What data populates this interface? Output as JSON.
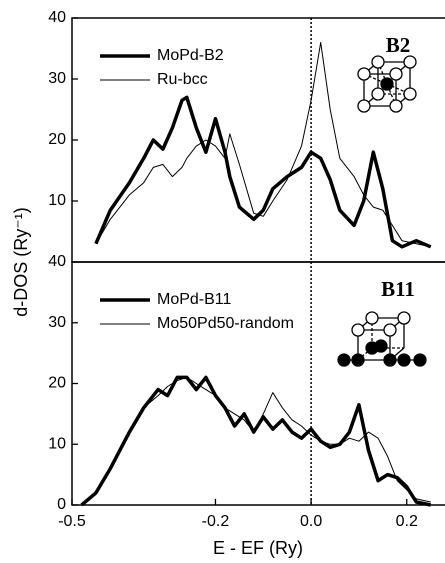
{
  "chart_data": [
    {
      "type": "line",
      "annotation": "B2",
      "ylabel": "d-DOS (Ry⁻¹)",
      "grid": false,
      "vline": 0,
      "x": [
        -0.45,
        -0.42,
        -0.38,
        -0.35,
        -0.33,
        -0.31,
        -0.29,
        -0.27,
        -0.26,
        -0.24,
        -0.22,
        -0.2,
        -0.18,
        -0.17,
        -0.15,
        -0.12,
        -0.1,
        -0.08,
        -0.05,
        -0.02,
        0,
        0.02,
        0.04,
        0.06,
        0.09,
        0.11,
        0.13,
        0.15,
        0.17,
        0.19,
        0.22,
        0.25
      ],
      "series": [
        {
          "name": "MoPd-B2",
          "color": "#000000",
          "width": 3.5,
          "values": [
            3,
            8.5,
            13,
            17,
            20,
            18.5,
            22,
            26.5,
            27,
            22,
            18,
            23.5,
            18,
            14,
            9,
            7,
            8.5,
            12,
            14,
            15.5,
            18,
            17,
            13.5,
            8.5,
            6,
            10,
            18,
            12,
            3.5,
            2.5,
            3.5,
            2.5
          ]
        },
        {
          "name": "Ru-bcc",
          "color": "#000000",
          "width": 1,
          "values": [
            3,
            7,
            11,
            13,
            15.5,
            16,
            14,
            15.5,
            17,
            19,
            20,
            19,
            17,
            21,
            16,
            8,
            7.5,
            10,
            13.5,
            19,
            26.5,
            36,
            25,
            17,
            14,
            11,
            9,
            8.5,
            6,
            3.5,
            3,
            2.5
          ]
        }
      ],
      "xlim": [
        -0.5,
        0.28
      ],
      "ylim": [
        0,
        40
      ],
      "yticks": [
        10,
        20,
        30,
        40
      ]
    },
    {
      "type": "line",
      "annotation": "B11",
      "xlabel": "E - EF (Ry)",
      "grid": false,
      "vline": 0,
      "x": [
        -0.48,
        -0.45,
        -0.42,
        -0.38,
        -0.35,
        -0.32,
        -0.3,
        -0.28,
        -0.26,
        -0.24,
        -0.22,
        -0.2,
        -0.18,
        -0.16,
        -0.14,
        -0.12,
        -0.1,
        -0.08,
        -0.06,
        -0.04,
        -0.02,
        0,
        0.02,
        0.04,
        0.06,
        0.08,
        0.1,
        0.12,
        0.14,
        0.16,
        0.18,
        0.2,
        0.22,
        0.25
      ],
      "series": [
        {
          "name": "MoPd-B11",
          "color": "#000000",
          "width": 3.5,
          "values": [
            0,
            2,
            6,
            12,
            16,
            19,
            18,
            21,
            21,
            19,
            21,
            18,
            16,
            13,
            15,
            12,
            14.5,
            12.5,
            14,
            12,
            11,
            12.5,
            10.5,
            9.5,
            10,
            12,
            16.5,
            9,
            4,
            5,
            4.5,
            3,
            0.5,
            0
          ]
        },
        {
          "name": "Mo50Pd50-random",
          "color": "#000000",
          "width": 1,
          "values": [
            0,
            2,
            6,
            12,
            16,
            18,
            19.5,
            20.5,
            21,
            20,
            19,
            18,
            16,
            15,
            14,
            12,
            15,
            18.5,
            16,
            14,
            13,
            11.5,
            10.5,
            10,
            10,
            11,
            10.5,
            12,
            11,
            8,
            4,
            2.5,
            1,
            0.5
          ]
        }
      ],
      "xlim": [
        -0.5,
        0.28
      ],
      "ylim": [
        0,
        40
      ],
      "yticks": [
        0,
        10,
        20,
        30,
        40
      ],
      "xticks": [
        -0.5,
        -0.2,
        {
          "value": 0,
          "label": "0.0"
        },
        0.2
      ]
    }
  ]
}
